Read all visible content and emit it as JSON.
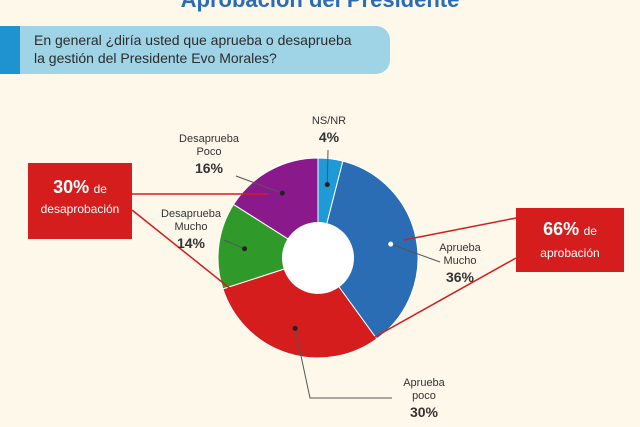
{
  "header": {
    "title": "Aprobación del Presidente",
    "question_line1": "En general ¿diría usted que aprueba o desaprueba",
    "question_line2": "la gestión del Presidente Evo Morales?"
  },
  "callouts": {
    "disapproval_pct": "30%",
    "disapproval_word": "de",
    "disapproval_text": "desaprobación",
    "approval_pct": "66%",
    "approval_word": "de",
    "approval_text": "aprobación"
  },
  "chart_data": {
    "type": "pie",
    "donut": true,
    "slices": [
      {
        "label_line1": "NS/NR",
        "label_line2": "",
        "value": 4,
        "display": "4%",
        "color": "#1f9ad6"
      },
      {
        "label_line1": "Aprueba",
        "label_line2": "Mucho",
        "value": 36,
        "display": "36%",
        "color": "#2a6db5"
      },
      {
        "label_line1": "Aprueba",
        "label_line2": "poco",
        "value": 30,
        "display": "30%",
        "color": "#d51d1d"
      },
      {
        "label_line1": "Desaprueba",
        "label_line2": "Mucho",
        "value": 14,
        "display": "14%",
        "color": "#2f9a2a"
      },
      {
        "label_line1": "Desaprueba",
        "label_line2": "Poco",
        "value": 16,
        "display": "16%",
        "color": "#8a1a8c"
      }
    ]
  }
}
